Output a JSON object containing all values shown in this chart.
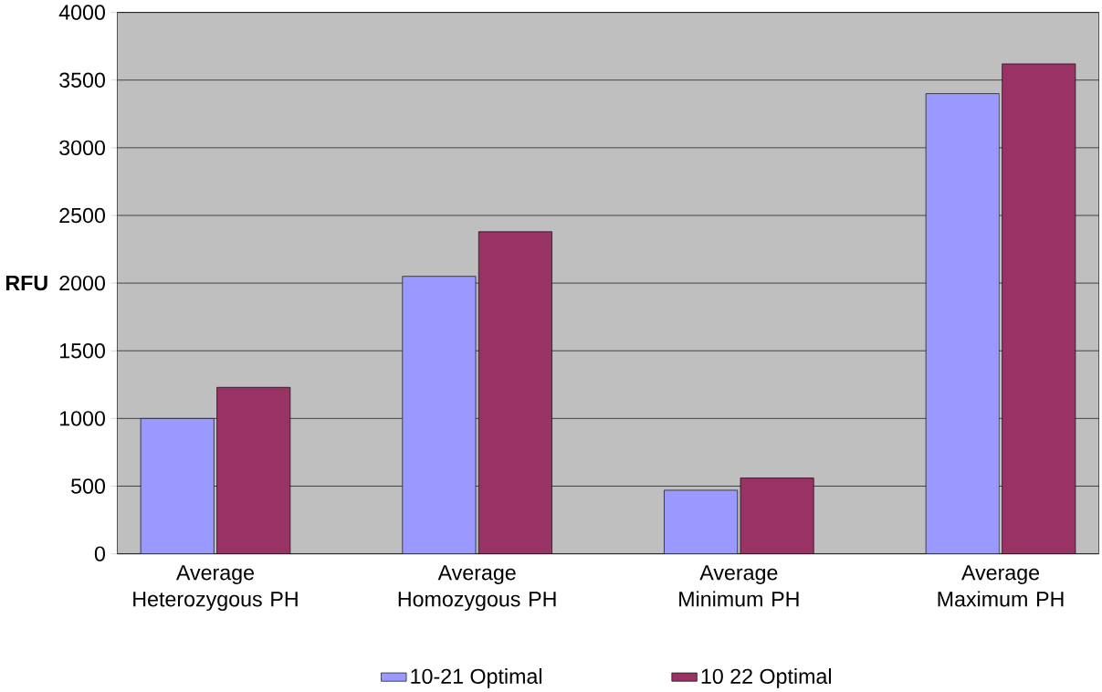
{
  "chart_data": {
    "type": "bar",
    "ylabel": "RFU",
    "categories": [
      "Average Heterozygous PH",
      "Average Homozygous PH",
      "Average Minimum PH",
      "Average Maximum PH"
    ],
    "series": [
      {
        "name": "10-21 Optimal",
        "color": "#9999ff",
        "values": [
          1000,
          2050,
          470,
          3400
        ]
      },
      {
        "name": "10 22 Optimal",
        "color": "#993366",
        "values": [
          1230,
          2380,
          560,
          3620
        ]
      }
    ],
    "ylim": [
      0,
      4000
    ],
    "yticks": [
      0,
      500,
      1000,
      1500,
      2000,
      2500,
      3000,
      3500,
      4000
    ],
    "grid": "y",
    "legend": "bottom"
  }
}
